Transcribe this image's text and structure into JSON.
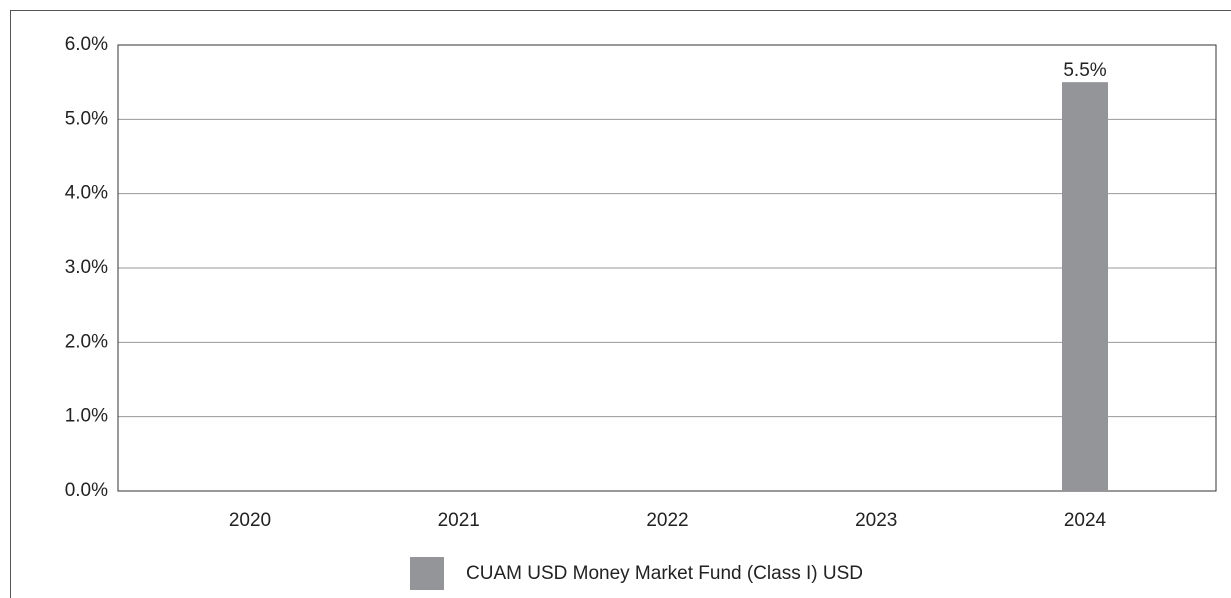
{
  "chart_data": {
    "type": "bar",
    "categories": [
      "2020",
      "2021",
      "2022",
      "2023",
      "2024"
    ],
    "series": [
      {
        "name": "CUAM USD Money Market Fund (Class I) USD",
        "color": "#939598",
        "values": [
          null,
          null,
          null,
          null,
          5.5
        ],
        "value_labels": [
          null,
          null,
          null,
          null,
          "5.5%"
        ]
      }
    ],
    "ylim": [
      0,
      6
    ],
    "yticks": [
      {
        "value": 0,
        "label": "0.0%"
      },
      {
        "value": 1,
        "label": "1.0%"
      },
      {
        "value": 2,
        "label": "2.0%"
      },
      {
        "value": 3,
        "label": "3.0%"
      },
      {
        "value": 4,
        "label": "4.0%"
      },
      {
        "value": 5,
        "label": "5.0%"
      },
      {
        "value": 6,
        "label": "6.0%"
      }
    ],
    "grid": true,
    "legend": "bottom"
  }
}
